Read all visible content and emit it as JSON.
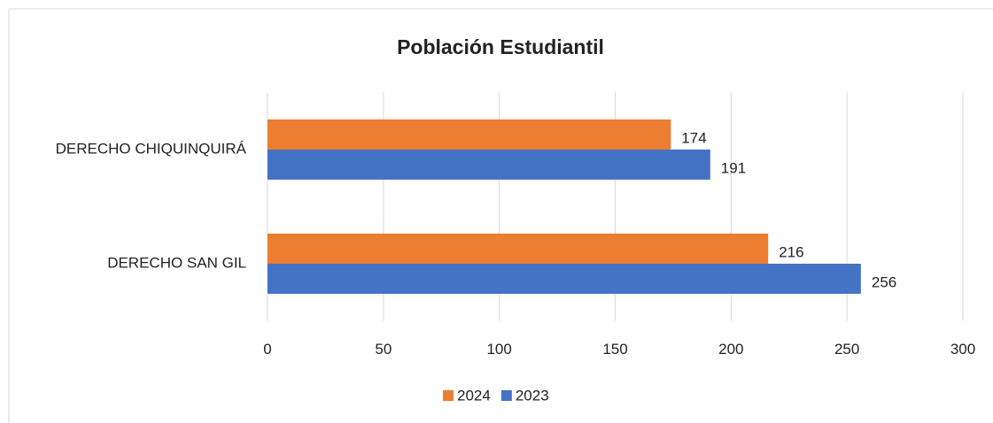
{
  "chart_data": {
    "type": "bar",
    "orientation": "horizontal",
    "title": "Población Estudiantil",
    "categories": [
      "DERECHO SAN GIL",
      "DERECHO CHIQUINQUIRÁ"
    ],
    "series": [
      {
        "name": "2024",
        "color": "#ED7D31",
        "values": [
          216,
          174
        ]
      },
      {
        "name": "2023",
        "color": "#4472C4",
        "values": [
          256,
          191
        ]
      }
    ],
    "xlim": [
      0,
      300
    ],
    "xticks": [
      0,
      50,
      100,
      150,
      200,
      250,
      300
    ],
    "grid": true,
    "legend": "bottom"
  }
}
